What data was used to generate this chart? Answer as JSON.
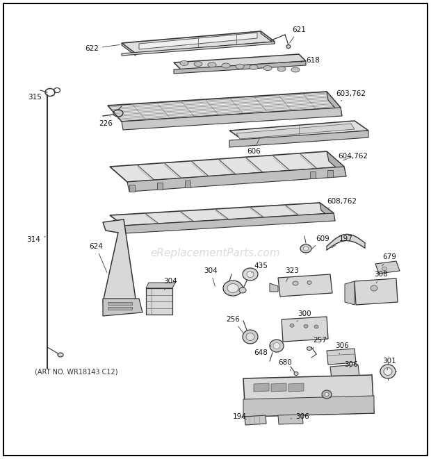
{
  "background_color": "#ffffff",
  "border_color": "#000000",
  "watermark_text": "eReplacementParts.com",
  "art_no_text": "(ART NO. WR18143 C12)",
  "figsize": [
    6.2,
    6.61
  ],
  "dpi": 100
}
